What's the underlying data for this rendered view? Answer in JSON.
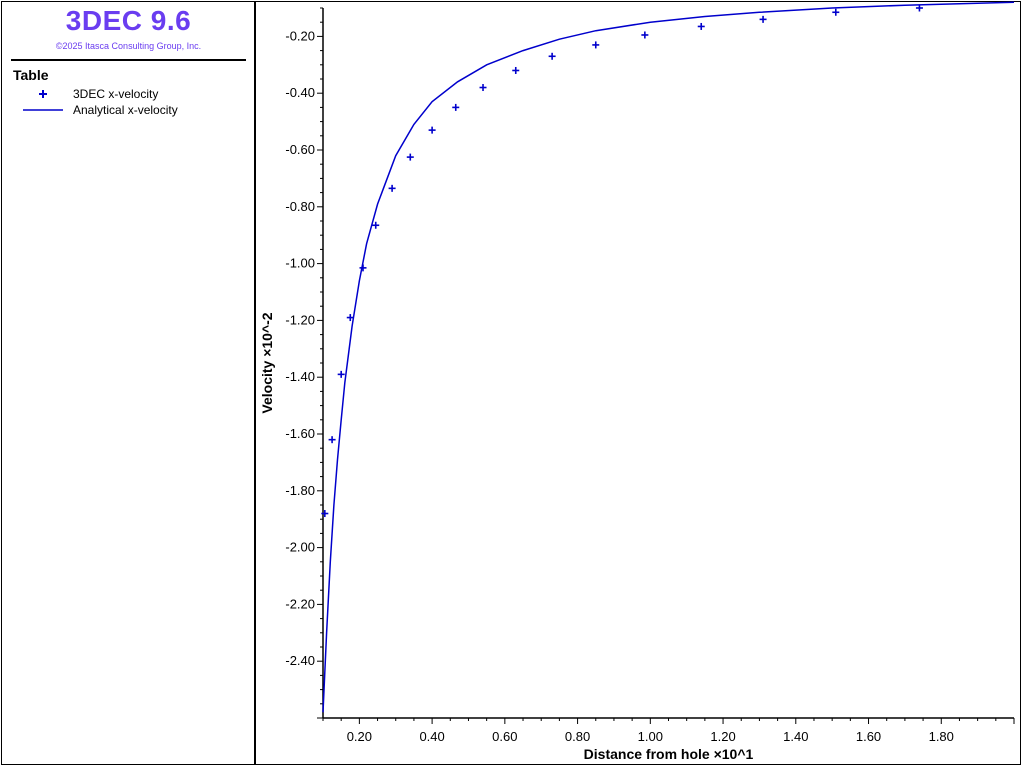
{
  "app": {
    "title": "3DEC 9.6",
    "copyright": "©2025 Itasca Consulting Group, Inc."
  },
  "legend": {
    "heading": "Table",
    "items": [
      {
        "label": "3DEC x-velocity",
        "marker": "plus",
        "color": "#0000cc"
      },
      {
        "label": "Analytical x-velocity",
        "marker": "line",
        "color": "#0000cc"
      }
    ]
  },
  "chart_data": {
    "type": "scatter",
    "xlabel": "Distance from hole ×10^1",
    "ylabel": "Velocity ×10^-2",
    "xlim": [
      0.1,
      2.0
    ],
    "ylim": [
      -2.6,
      -0.1
    ],
    "xticks": [
      0.2,
      0.4,
      0.6,
      0.8,
      1.0,
      1.2,
      1.4,
      1.6,
      1.8
    ],
    "xtick_labels": [
      "0.20",
      "0.40",
      "0.60",
      "0.80",
      "1.00",
      "1.20",
      "1.40",
      "1.60",
      "1.80"
    ],
    "yticks": [
      -0.2,
      -0.4,
      -0.6,
      -0.8,
      -1.0,
      -1.2,
      -1.4,
      -1.6,
      -1.8,
      -2.0,
      -2.2,
      -2.4
    ],
    "ytick_labels": [
      "-0.20",
      "-0.40",
      "-0.60",
      "-0.80",
      "-1.00",
      "-1.20",
      "-1.40",
      "-1.60",
      "-1.80",
      "-2.00",
      "-2.20",
      "-2.40"
    ],
    "grid": false,
    "series": [
      {
        "name": "3DEC x-velocity",
        "style": "plus",
        "color": "#0000cc",
        "x": [
          0.105,
          0.125,
          0.15,
          0.175,
          0.21,
          0.245,
          0.29,
          0.34,
          0.4,
          0.465,
          0.54,
          0.63,
          0.73,
          0.85,
          0.985,
          1.14,
          1.31,
          1.51,
          1.74
        ],
        "y": [
          -1.88,
          -1.62,
          -1.39,
          -1.19,
          -1.015,
          -0.865,
          -0.735,
          -0.625,
          -0.53,
          -0.45,
          -0.38,
          -0.32,
          -0.27,
          -0.23,
          -0.195,
          -0.165,
          -0.14,
          -0.115,
          -0.1
        ]
      },
      {
        "name": "Analytical x-velocity",
        "style": "line",
        "color": "#0000cc",
        "x": [
          0.1,
          0.11,
          0.12,
          0.13,
          0.14,
          0.15,
          0.16,
          0.18,
          0.2,
          0.22,
          0.25,
          0.3,
          0.35,
          0.4,
          0.47,
          0.55,
          0.65,
          0.75,
          0.85,
          1.0,
          1.15,
          1.3,
          1.5,
          1.7,
          2.0
        ],
        "y": [
          -2.58,
          -2.3,
          -2.05,
          -1.85,
          -1.69,
          -1.55,
          -1.42,
          -1.22,
          -1.06,
          -0.93,
          -0.79,
          -0.62,
          -0.51,
          -0.43,
          -0.36,
          -0.3,
          -0.25,
          -0.21,
          -0.18,
          -0.15,
          -0.13,
          -0.115,
          -0.1,
          -0.09,
          -0.08
        ]
      }
    ]
  }
}
